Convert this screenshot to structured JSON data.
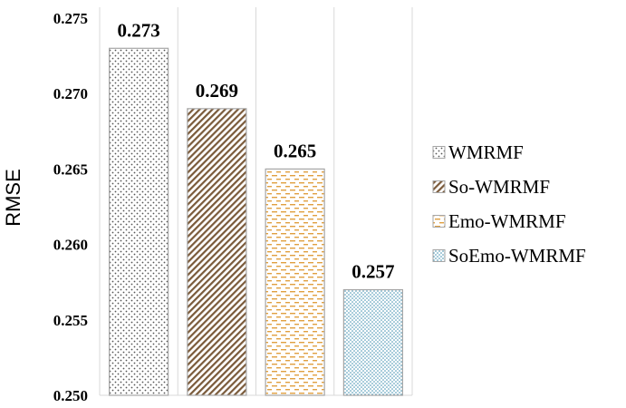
{
  "chart_data": {
    "type": "bar",
    "ylabel": "RMSE",
    "ylim": [
      0.25,
      0.275
    ],
    "yticks": [
      "0.250",
      "0.255",
      "0.260",
      "0.265",
      "0.270",
      "0.275"
    ],
    "grid": "vertical lines between categories",
    "legend_position": "right",
    "series": [
      {
        "name": "WMRMF",
        "value": 0.273,
        "label": "0.273",
        "pattern": "dots",
        "color": "#555555"
      },
      {
        "name": "So-WMRMF",
        "value": 0.269,
        "label": "0.269",
        "pattern": "diagonal-stripes",
        "color": "#7a5a3a"
      },
      {
        "name": "Emo-WMRMF",
        "value": 0.265,
        "label": "0.265",
        "pattern": "dashes",
        "color": "#e0a040"
      },
      {
        "name": "SoEmo-WMRMF",
        "value": 0.257,
        "label": "0.257",
        "pattern": "fine-dots",
        "color": "#3f8fb0"
      }
    ]
  }
}
